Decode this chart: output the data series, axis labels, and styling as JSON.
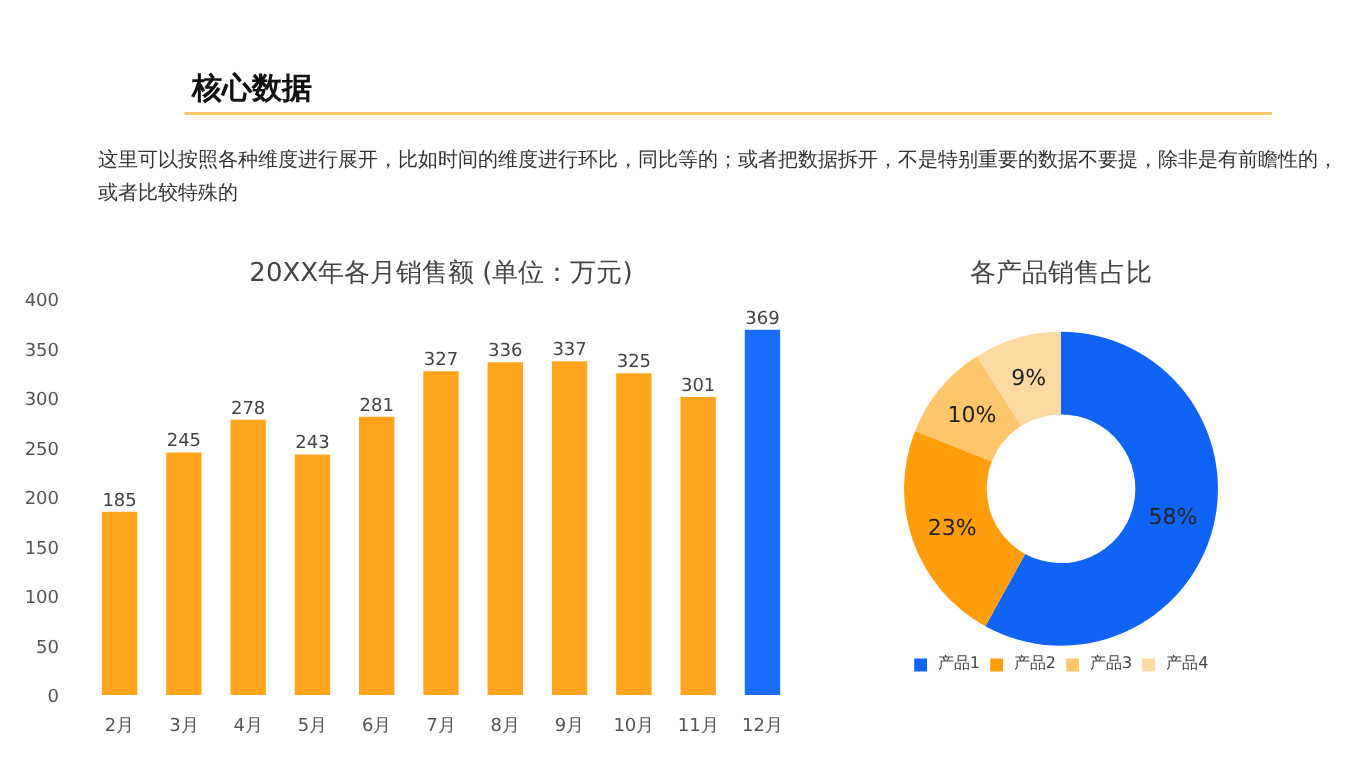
{
  "chart_data": [
    {
      "type": "other",
      "title": "核心数据",
      "annotations": [
        "这里可以按照各种维度进行展开，比如时间的维度进行环比，同比等的；或者把数据拆开，不是特别重要的数据不要提，除非是有前瞻性的，或者比较特殊的"
      ]
    },
    {
      "type": "bar",
      "title": "20XX年各月销售额 (单位：万元)",
      "categories": [
        "2月",
        "3月",
        "4月",
        "5月",
        "6月",
        "7月",
        "8月",
        "9月",
        "10月",
        "11月",
        "12月"
      ],
      "values": [
        185,
        245,
        278,
        243,
        281,
        327,
        336,
        337,
        325,
        301,
        369
      ],
      "colors": [
        "#ffa41c",
        "#ffa41c",
        "#ffa41c",
        "#ffa41c",
        "#ffa41c",
        "#ffa41c",
        "#ffa41c",
        "#ffa41c",
        "#ffa41c",
        "#ffa41c",
        "#1a6dff"
      ],
      "ylim": [
        0,
        400
      ],
      "yticks": [
        0,
        50,
        100,
        150,
        200,
        250,
        300,
        350,
        400
      ],
      "data_labels": true
    },
    {
      "type": "donut",
      "title": "各产品销售占比",
      "categories": [
        "产品1",
        "产品2",
        "产品3",
        "产品4"
      ],
      "values": [
        58,
        23,
        10,
        9
      ],
      "colors": [
        "#0f63f5",
        "#ff9d0a",
        "#ffc56b",
        "#fcd9a3"
      ],
      "value_labels": [
        "58%",
        "23%",
        "10%",
        "9%"
      ],
      "legend": "bottom"
    }
  ]
}
